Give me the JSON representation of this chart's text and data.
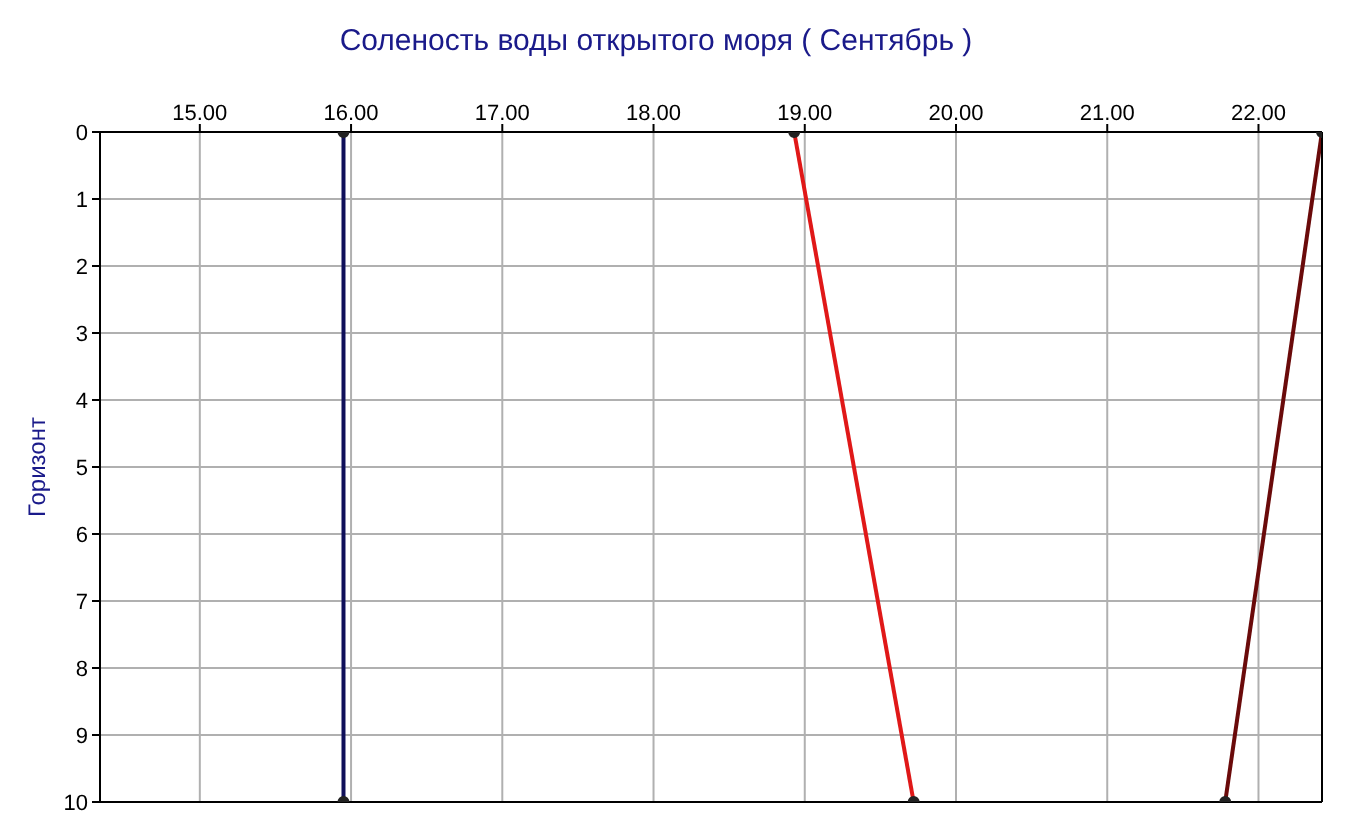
{
  "chart_data": {
    "type": "line",
    "title": "Соленость воды открытого моря    ( Сентябрь )",
    "ylabel": "Горизонт",
    "series": [
      {
        "color": "#10105a",
        "x": [
          15.95,
          15.95
        ],
        "values": [
          0,
          10
        ]
      },
      {
        "color": "#e01818",
        "x": [
          18.93,
          19.72
        ],
        "values": [
          0,
          10
        ]
      },
      {
        "color": "#6a0a0a",
        "x": [
          22.42,
          21.78
        ],
        "values": [
          0,
          10
        ]
      }
    ],
    "xlim": [
      14.34,
      22.42
    ],
    "xticks": [
      {
        "value": 15,
        "label": "15.00"
      },
      {
        "value": 16,
        "label": "16.00"
      },
      {
        "value": 17,
        "label": "17.00"
      },
      {
        "value": 18,
        "label": "18.00"
      },
      {
        "value": 19,
        "label": "19.00"
      },
      {
        "value": 20,
        "label": "20.00"
      },
      {
        "value": 21,
        "label": "21.00"
      },
      {
        "value": 22,
        "label": "22.00"
      }
    ],
    "ylim": [
      10,
      0
    ],
    "yticks": [
      0,
      1,
      2,
      3,
      4,
      5,
      6,
      7,
      8,
      9,
      10
    ],
    "grid": true,
    "marker": "circle",
    "line_style": "solid"
  }
}
